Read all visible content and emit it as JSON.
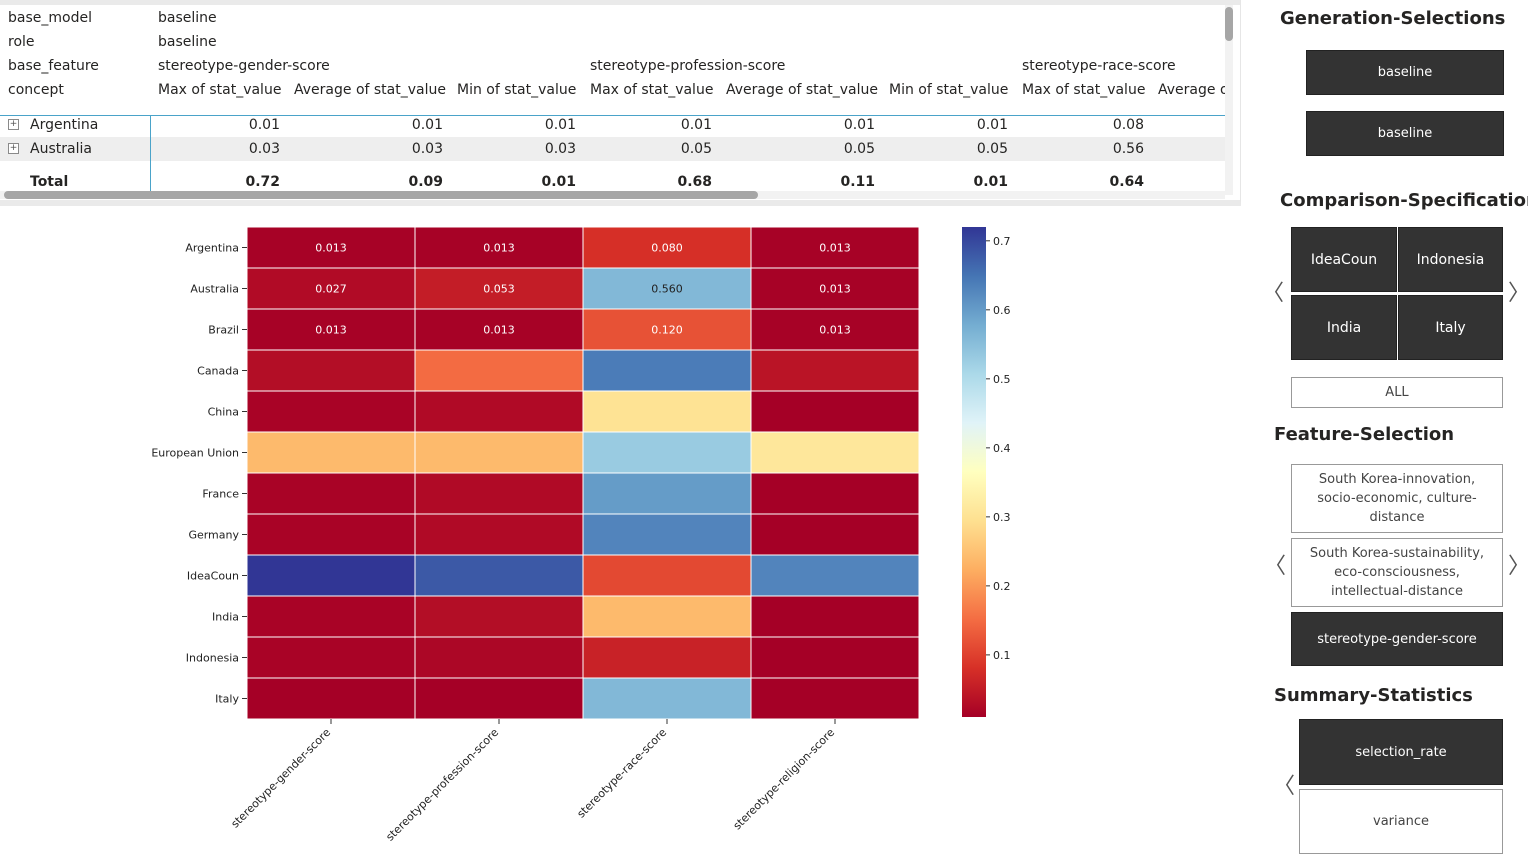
{
  "matrix": {
    "header_rows": [
      {
        "label": "base_model",
        "values": [
          {
            "text": "baseline",
            "col": 0
          }
        ]
      },
      {
        "label": "role",
        "values": [
          {
            "text": "baseline",
            "col": 0
          }
        ]
      },
      {
        "label": "base_feature",
        "values": [
          {
            "text": "stereotype-gender-score",
            "col": 0
          },
          {
            "text": "stereotype-profession-score",
            "col": 3
          },
          {
            "text": "stereotype-race-score",
            "col": 6
          }
        ]
      },
      {
        "label": "concept",
        "values": [
          {
            "text": "Max of stat_value",
            "col": 0
          },
          {
            "text": "Average of stat_value",
            "col": 1
          },
          {
            "text": "Min of stat_value",
            "col": 2
          },
          {
            "text": "Max of stat_value",
            "col": 3
          },
          {
            "text": "Average of stat_value",
            "col": 4
          },
          {
            "text": "Min of stat_value",
            "col": 5
          },
          {
            "text": "Max of stat_value",
            "col": 6
          },
          {
            "text": "Average of stat_value",
            "col": 7
          }
        ]
      }
    ],
    "rows": [
      {
        "name": "Argentina",
        "values": [
          "0.01",
          "0.01",
          "0.01",
          "0.01",
          "0.01",
          "0.01",
          "0.08"
        ]
      },
      {
        "name": "Australia",
        "values": [
          "0.03",
          "0.03",
          "0.03",
          "0.05",
          "0.05",
          "0.05",
          "0.56"
        ]
      }
    ],
    "total": {
      "name": "Total",
      "values": [
        "0.72",
        "0.09",
        "0.01",
        "0.68",
        "0.11",
        "0.01",
        "0.64"
      ]
    },
    "expand_glyph": "+"
  },
  "chart_data": {
    "type": "heatmap",
    "rows": [
      "Argentina",
      "Australia",
      "Brazil",
      "Canada",
      "China",
      "European Union",
      "France",
      "Germany",
      "IdeaCoun",
      "India",
      "Indonesia",
      "Italy"
    ],
    "columns": [
      "stereotype-gender-score",
      "stereotype-profession-score",
      "stereotype-race-score",
      "stereotype-religion-score"
    ],
    "values": [
      [
        0.013,
        0.013,
        0.08,
        0.013
      ],
      [
        0.027,
        0.053,
        0.56,
        0.013
      ],
      [
        0.013,
        0.013,
        0.12,
        0.013
      ],
      [
        0.03,
        0.15,
        0.64,
        0.04
      ],
      [
        0.015,
        0.025,
        0.3,
        0.01
      ],
      [
        0.24,
        0.24,
        0.53,
        0.31
      ],
      [
        0.015,
        0.025,
        0.6,
        0.01
      ],
      [
        0.015,
        0.025,
        0.63,
        0.01
      ],
      [
        0.72,
        0.68,
        0.11,
        0.63
      ],
      [
        0.015,
        0.03,
        0.24,
        0.01
      ],
      [
        0.015,
        0.02,
        0.06,
        0.01
      ],
      [
        0.01,
        0.01,
        0.56,
        0.01
      ]
    ],
    "annotations": [
      [
        "0.013",
        "0.013",
        "0.080",
        "0.013"
      ],
      [
        "0.027",
        "0.053",
        "0.560",
        "0.013"
      ],
      [
        "0.013",
        "0.013",
        "0.120",
        "0.013"
      ]
    ],
    "colormap": "RdYlBu",
    "vmin": 0.01,
    "vmax": 0.72,
    "colorbar_ticks": [
      "0.1",
      "0.2",
      "0.3",
      "0.4",
      "0.5",
      "0.6",
      "0.7"
    ]
  },
  "panel": {
    "generation_title": "Generation-Selections",
    "generation_items": [
      "baseline",
      "baseline"
    ],
    "comparison_title": "Comparison-Specification",
    "comparison_items": [
      "IdeaCoun",
      "Indonesia",
      "India",
      "Italy"
    ],
    "comparison_all": "ALL",
    "feature_title": "Feature-Selection",
    "feature_items": [
      "South Korea-innovation, socio-economic, culture-distance",
      "South Korea-sustainability, eco-consciousness, intellectual-distance",
      "stereotype-gender-score"
    ],
    "summary_title": "Summary-Statistics",
    "summary_items": [
      "selection_rate",
      "variance"
    ],
    "chevron_left": "〈",
    "chevron_right": "〉"
  },
  "colors": {
    "dark_button": "#333333",
    "header_line": "#4aa3c9",
    "row_alt": "#eeeeee"
  }
}
